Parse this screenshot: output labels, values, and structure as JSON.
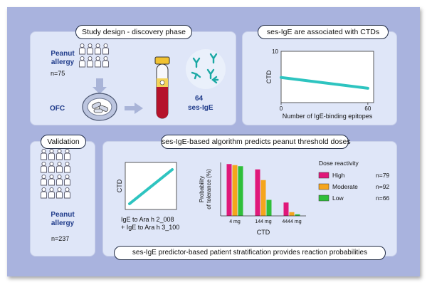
{
  "study_design": {
    "title": "Study design - discovery phase",
    "cohort_label": "Peanut allergy",
    "cohort_n": "n=75",
    "challenge_label": "OFC",
    "epitope_count": "64",
    "epitope_label": "ses-IgE"
  },
  "ctd_panel": {
    "title": "ses-IgE are associated with CTDs",
    "ylabel": "CTD",
    "xlabel": "Number of IgE-binding epitopes",
    "y_tick_top": "10",
    "x_ticks": [
      "0",
      "60"
    ]
  },
  "validation": {
    "title": "Validation",
    "cohort_label": "Peanut allergy",
    "cohort_n": "n=237"
  },
  "algorithm": {
    "title": "ses-IgE-based algorithm predicts peanut threshold doses",
    "scatter_ylabel": "CTD",
    "scatter_xlabel_line1": "IgE to Ara h 2_008",
    "scatter_xlabel_line2": "+ IgE to Ara h 3_100",
    "bar_ylabel_line1": "Probability",
    "bar_ylabel_line2": "of tolerance (%)",
    "bar_xlabel": "CTD",
    "bottom_caption": "ses-IgE predictor-based patient stratification provides reaction probabilities"
  },
  "chart_data": [
    {
      "type": "line",
      "title": "ses-IgE are associated with CTDs",
      "xlabel": "Number of IgE-binding epitopes",
      "ylabel": "CTD",
      "x": [
        0,
        60
      ],
      "y": [
        4.9,
        2.8
      ],
      "xlim": [
        0,
        64
      ],
      "ylim": [
        0,
        10
      ],
      "grid": false
    },
    {
      "type": "line",
      "xlabel": "IgE to Ara h 2_008 + IgE to Ara h 3_100",
      "ylabel": "CTD",
      "x": [
        0,
        1
      ],
      "y": [
        0,
        1
      ]
    },
    {
      "type": "bar",
      "xlabel": "CTD",
      "ylabel": "Probability of tolerance (%)",
      "categories": [
        "4 mg",
        "144 mg",
        "4444 mg"
      ],
      "ylim": [
        0,
        100
      ],
      "legend_title": "Dose reactivity",
      "legend_position": "right",
      "series": [
        {
          "name": "High",
          "n": "n=79",
          "color": "#e0187a",
          "values": [
            97,
            87,
            25
          ]
        },
        {
          "name": "Moderate",
          "n": "n=92",
          "color": "#f5a51c",
          "values": [
            95,
            67,
            7
          ]
        },
        {
          "name": "Low",
          "n": "n=66",
          "color": "#2fbf3a",
          "values": [
            93,
            30,
            3
          ]
        }
      ]
    }
  ],
  "colors": {
    "frame": "#a9b3de",
    "panel": "#dfe6f8",
    "title_blue": "#1f3b8a",
    "person_fill": "#ffffff",
    "person_stroke": "#5a5a6a",
    "line_teal": "#2ec4c0",
    "arrow": "#a9b4d8",
    "tube_red": "#b5132b",
    "antibody": "#1aa8a4"
  },
  "icons": [
    "people-group-icon",
    "pill-plate-icon",
    "blood-tube-icon",
    "antibody-icon",
    "arrow-icon"
  ]
}
